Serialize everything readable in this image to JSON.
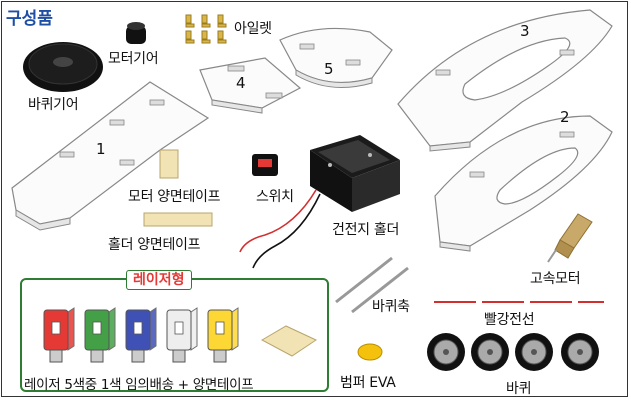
{
  "title": "구성품",
  "labels": {
    "motor_gear": "모터기어",
    "eyelet": "아일렛",
    "wheel_gear": "바퀴기어",
    "motor_tape": "모터 양면테이프",
    "switch": "스위치",
    "holder_tape": "홀더 양면테이프",
    "battery_holder": "건전지 홀더",
    "axle": "바퀴축",
    "high_speed_motor": "고속모터",
    "red_wire": "빨강전선",
    "bumper_eva": "범퍼 EVA",
    "wheel": "바퀴",
    "laser_type": "레이저형",
    "laser_caption": "레이저 5색중 1색 임의배송 + 양면테이프"
  },
  "part_numbers": {
    "p1": "1",
    "p2": "2",
    "p3": "3",
    "p4": "4",
    "p5": "5"
  },
  "laser_colors": [
    "#e53935",
    "#43a047",
    "#3f51b5",
    "#eeeeee",
    "#fdd835"
  ]
}
